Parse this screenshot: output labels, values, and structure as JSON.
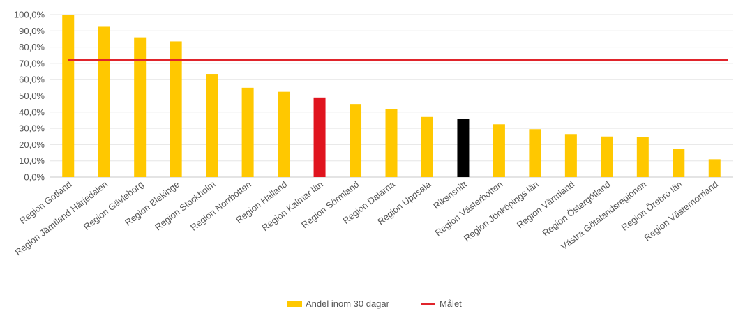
{
  "chart_data": {
    "type": "bar",
    "categories": [
      "Region Gotland",
      "Region Jämtland Härjedalen",
      "Region Gävleborg",
      "Region Blekinge",
      "Region Stockholm",
      "Region Norrbotten",
      "Region Halland",
      "Region Kalmar län",
      "Region Sörmland",
      "Region Dalarna",
      "Region Uppsala",
      "Riksnsnitt",
      "Region Västerbotten",
      "Region Jönköpings län",
      "Region Värmland",
      "Region Östergötland",
      "Västra Götalandsregionen",
      "Region Örebro län",
      "Region Västernorrland"
    ],
    "series": [
      {
        "name": "Andel inom 30 dagar",
        "values": [
          100.0,
          92.5,
          86.0,
          83.5,
          63.5,
          55.0,
          52.5,
          49.0,
          45.0,
          42.0,
          37.0,
          36.0,
          32.5,
          29.5,
          26.5,
          25.0,
          24.5,
          17.5,
          11.0
        ],
        "color": "#FFC800"
      }
    ],
    "highlight_colors": {
      "Region Kalmar län": "#E0141E",
      "Riksnsnitt": "#000000"
    },
    "target_line": {
      "name": "Målet",
      "value": 72.0,
      "color": "#E0242B"
    },
    "yticks": [
      "0,0%",
      "10,0%",
      "20,0%",
      "30,0%",
      "40,0%",
      "50,0%",
      "60,0%",
      "70,0%",
      "80,0%",
      "90,0%",
      "100,0%"
    ],
    "ylim": [
      0,
      100
    ],
    "grid": true,
    "legend_position": "bottom-center",
    "title": "",
    "xlabel": "",
    "ylabel": ""
  }
}
